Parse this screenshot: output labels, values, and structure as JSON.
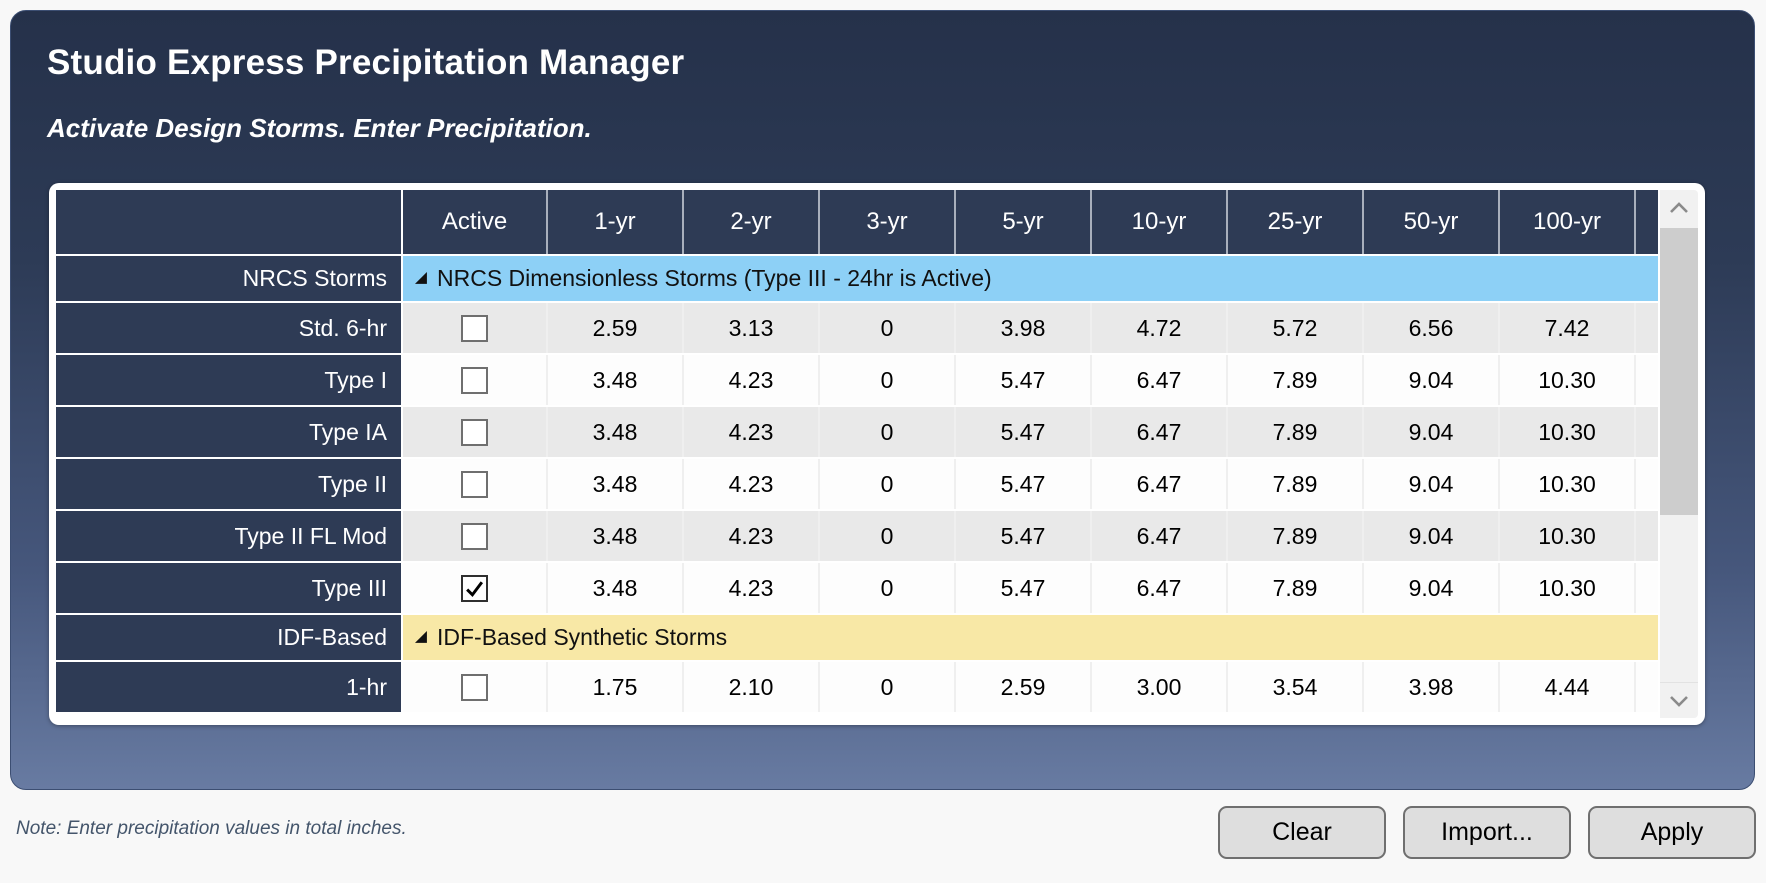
{
  "header": {
    "title": "Studio Express Precipitation Manager",
    "subtitle": "Activate Design Storms. Enter Precipitation."
  },
  "table": {
    "columns": [
      "Active",
      "1-yr",
      "2-yr",
      "3-yr",
      "5-yr",
      "10-yr",
      "25-yr",
      "50-yr",
      "100-yr"
    ],
    "groups": [
      {
        "label": "NRCS Storms",
        "band_text": "NRCS Dimensionless Storms (Type III - 24hr is Active)",
        "band_color": "#8DD0F6",
        "rows": [
          {
            "label": "Std. 6-hr",
            "active": false,
            "shade": "gray",
            "values": [
              "2.59",
              "3.13",
              "0",
              "3.98",
              "4.72",
              "5.72",
              "6.56",
              "7.42"
            ]
          },
          {
            "label": "Type I",
            "active": false,
            "shade": "white",
            "values": [
              "3.48",
              "4.23",
              "0",
              "5.47",
              "6.47",
              "7.89",
              "9.04",
              "10.30"
            ]
          },
          {
            "label": "Type IA",
            "active": false,
            "shade": "gray",
            "values": [
              "3.48",
              "4.23",
              "0",
              "5.47",
              "6.47",
              "7.89",
              "9.04",
              "10.30"
            ]
          },
          {
            "label": "Type II",
            "active": false,
            "shade": "white",
            "values": [
              "3.48",
              "4.23",
              "0",
              "5.47",
              "6.47",
              "7.89",
              "9.04",
              "10.30"
            ]
          },
          {
            "label": "Type II FL Mod",
            "active": false,
            "shade": "gray",
            "values": [
              "3.48",
              "4.23",
              "0",
              "5.47",
              "6.47",
              "7.89",
              "9.04",
              "10.30"
            ]
          },
          {
            "label": "Type III",
            "active": true,
            "shade": "white",
            "values": [
              "3.48",
              "4.23",
              "0",
              "5.47",
              "6.47",
              "7.89",
              "9.04",
              "10.30"
            ]
          }
        ]
      },
      {
        "label": "IDF-Based",
        "band_text": "IDF-Based Synthetic Storms",
        "band_color": "#F8E8A6",
        "rows": [
          {
            "label": "1-hr",
            "active": false,
            "shade": "white",
            "values": [
              "1.75",
              "2.10",
              "0",
              "2.59",
              "3.00",
              "3.54",
              "3.98",
              "4.44"
            ]
          }
        ]
      }
    ],
    "colors": {
      "header_navy": "#2e3b55",
      "row_gray": "#e9e9e9",
      "row_white": "#fdfdfd",
      "group_blue": "#8DD0F6",
      "group_yellow": "#F8E8A6"
    }
  },
  "footer": {
    "note": "Note: Enter precipitation values in total inches.",
    "buttons": [
      {
        "label": "Clear"
      },
      {
        "label": "Import..."
      },
      {
        "label": "Apply"
      }
    ]
  }
}
